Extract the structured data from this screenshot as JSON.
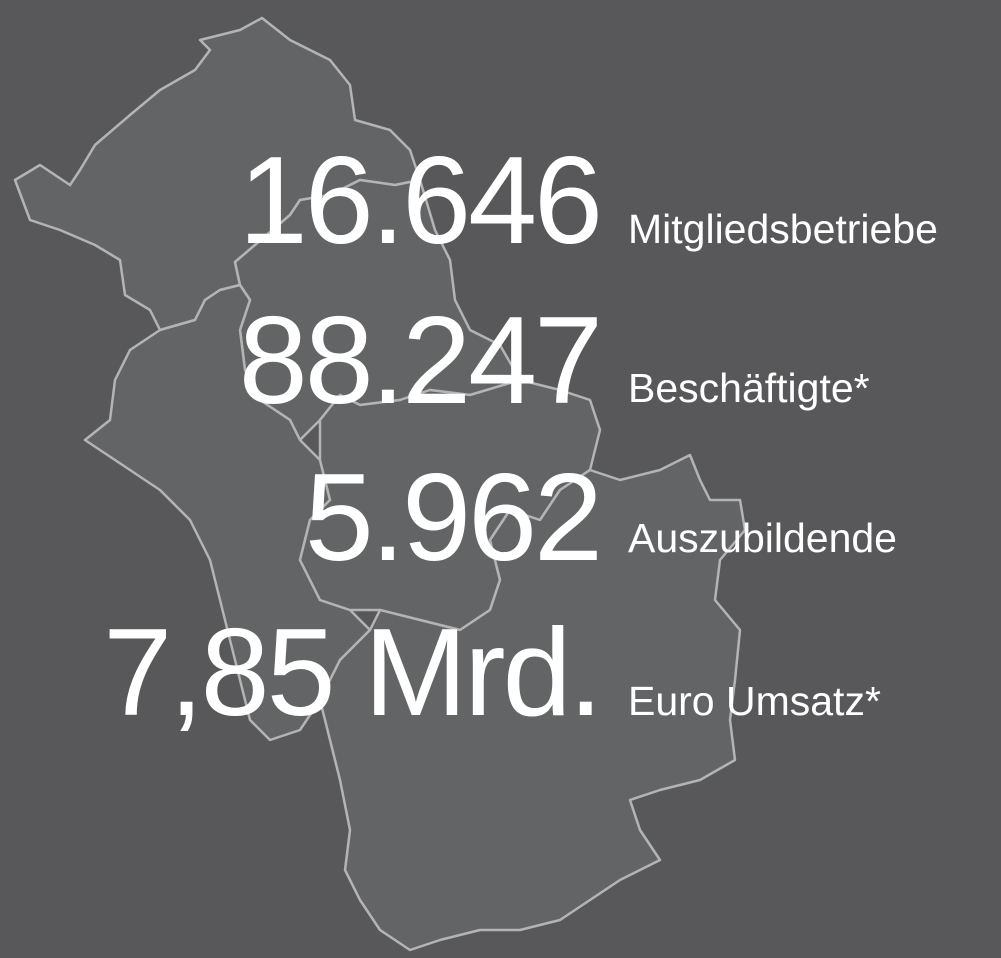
{
  "stats": [
    {
      "value": "16.646",
      "label": "Mitgliedsbetriebe"
    },
    {
      "value": "88.247",
      "label": "Beschäftigte*"
    },
    {
      "value": "5.962",
      "label": "Auszubildende"
    },
    {
      "value": "7,85 Mrd.",
      "label": "Euro Umsatz*"
    }
  ]
}
